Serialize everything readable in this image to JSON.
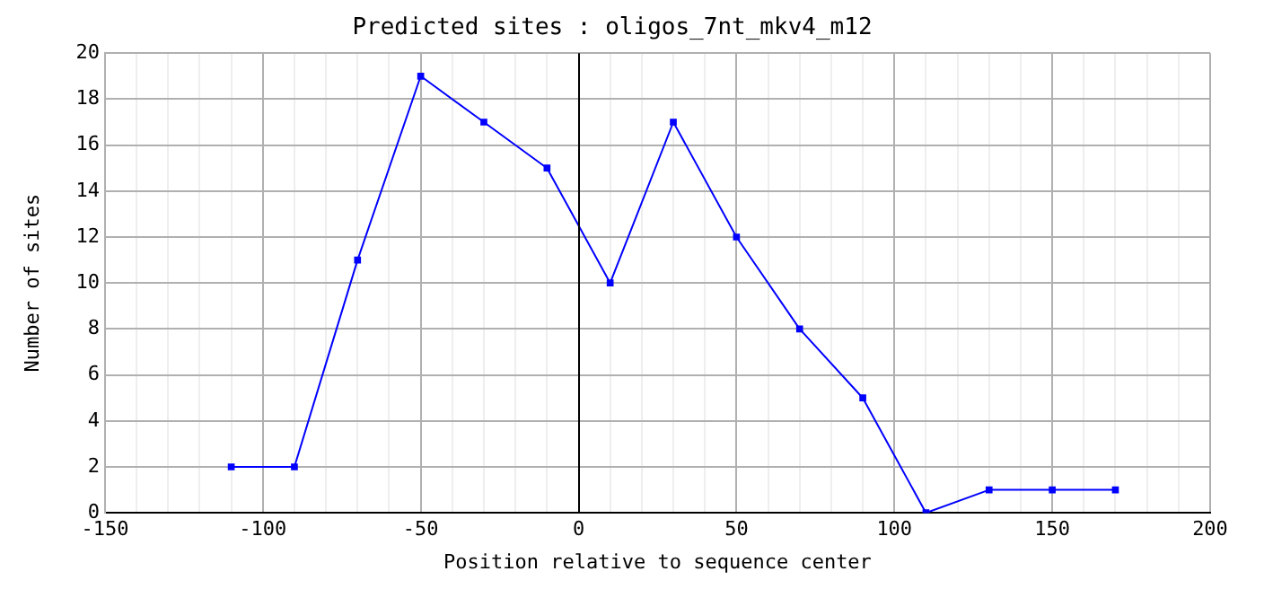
{
  "chart_data": {
    "type": "line",
    "title": "Predicted sites : oligos_7nt_mkv4_m12",
    "xlabel": "Position relative to sequence center",
    "ylabel": "Number of sites",
    "x": [
      -110,
      -90,
      -70,
      -50,
      -30,
      -10,
      10,
      30,
      50,
      70,
      90,
      110,
      130,
      150,
      170
    ],
    "series": [
      {
        "color": "#0000ff",
        "values": [
          2,
          2,
          11,
          19,
          17,
          15,
          10,
          17,
          12,
          8,
          5,
          0,
          1,
          1,
          1
        ]
      }
    ],
    "xlim": [
      -150,
      200
    ],
    "xticks": [
      -150,
      {
        "value": -140,
        "label": null
      },
      {
        "value": -130,
        "label": null
      },
      {
        "value": -120,
        "label": null
      },
      {
        "value": -110,
        "label": null
      },
      -100,
      {
        "value": -90,
        "label": null
      },
      {
        "value": -80,
        "label": null
      },
      {
        "value": -70,
        "label": null
      },
      {
        "value": -60,
        "label": null
      },
      -50,
      {
        "value": -40,
        "label": null
      },
      {
        "value": -30,
        "label": null
      },
      {
        "value": -20,
        "label": null
      },
      {
        "value": -10,
        "label": null
      },
      0,
      {
        "value": 10,
        "label": null
      },
      {
        "value": 20,
        "label": null
      },
      {
        "value": 30,
        "label": null
      },
      {
        "value": 40,
        "label": null
      },
      50,
      {
        "value": 60,
        "label": null
      },
      {
        "value": 70,
        "label": null
      },
      {
        "value": 80,
        "label": null
      },
      {
        "value": 90,
        "label": null
      },
      100,
      {
        "value": 110,
        "label": null
      },
      {
        "value": 120,
        "label": null
      },
      {
        "value": 130,
        "label": null
      },
      {
        "value": 140,
        "label": null
      },
      150,
      {
        "value": 160,
        "label": null
      },
      {
        "value": 170,
        "label": null
      },
      {
        "value": 180,
        "label": null
      },
      {
        "value": 190,
        "label": null
      },
      200
    ],
    "ylim": [
      0,
      20
    ],
    "yticks": [
      0,
      2,
      4,
      6,
      8,
      10,
      12,
      14,
      16,
      18,
      20
    ],
    "ref_lines": [
      {
        "axis": "x",
        "value": 0,
        "color": "#000000"
      }
    ],
    "grid": true,
    "legend": false,
    "marker": "square",
    "line_style": "solid"
  }
}
